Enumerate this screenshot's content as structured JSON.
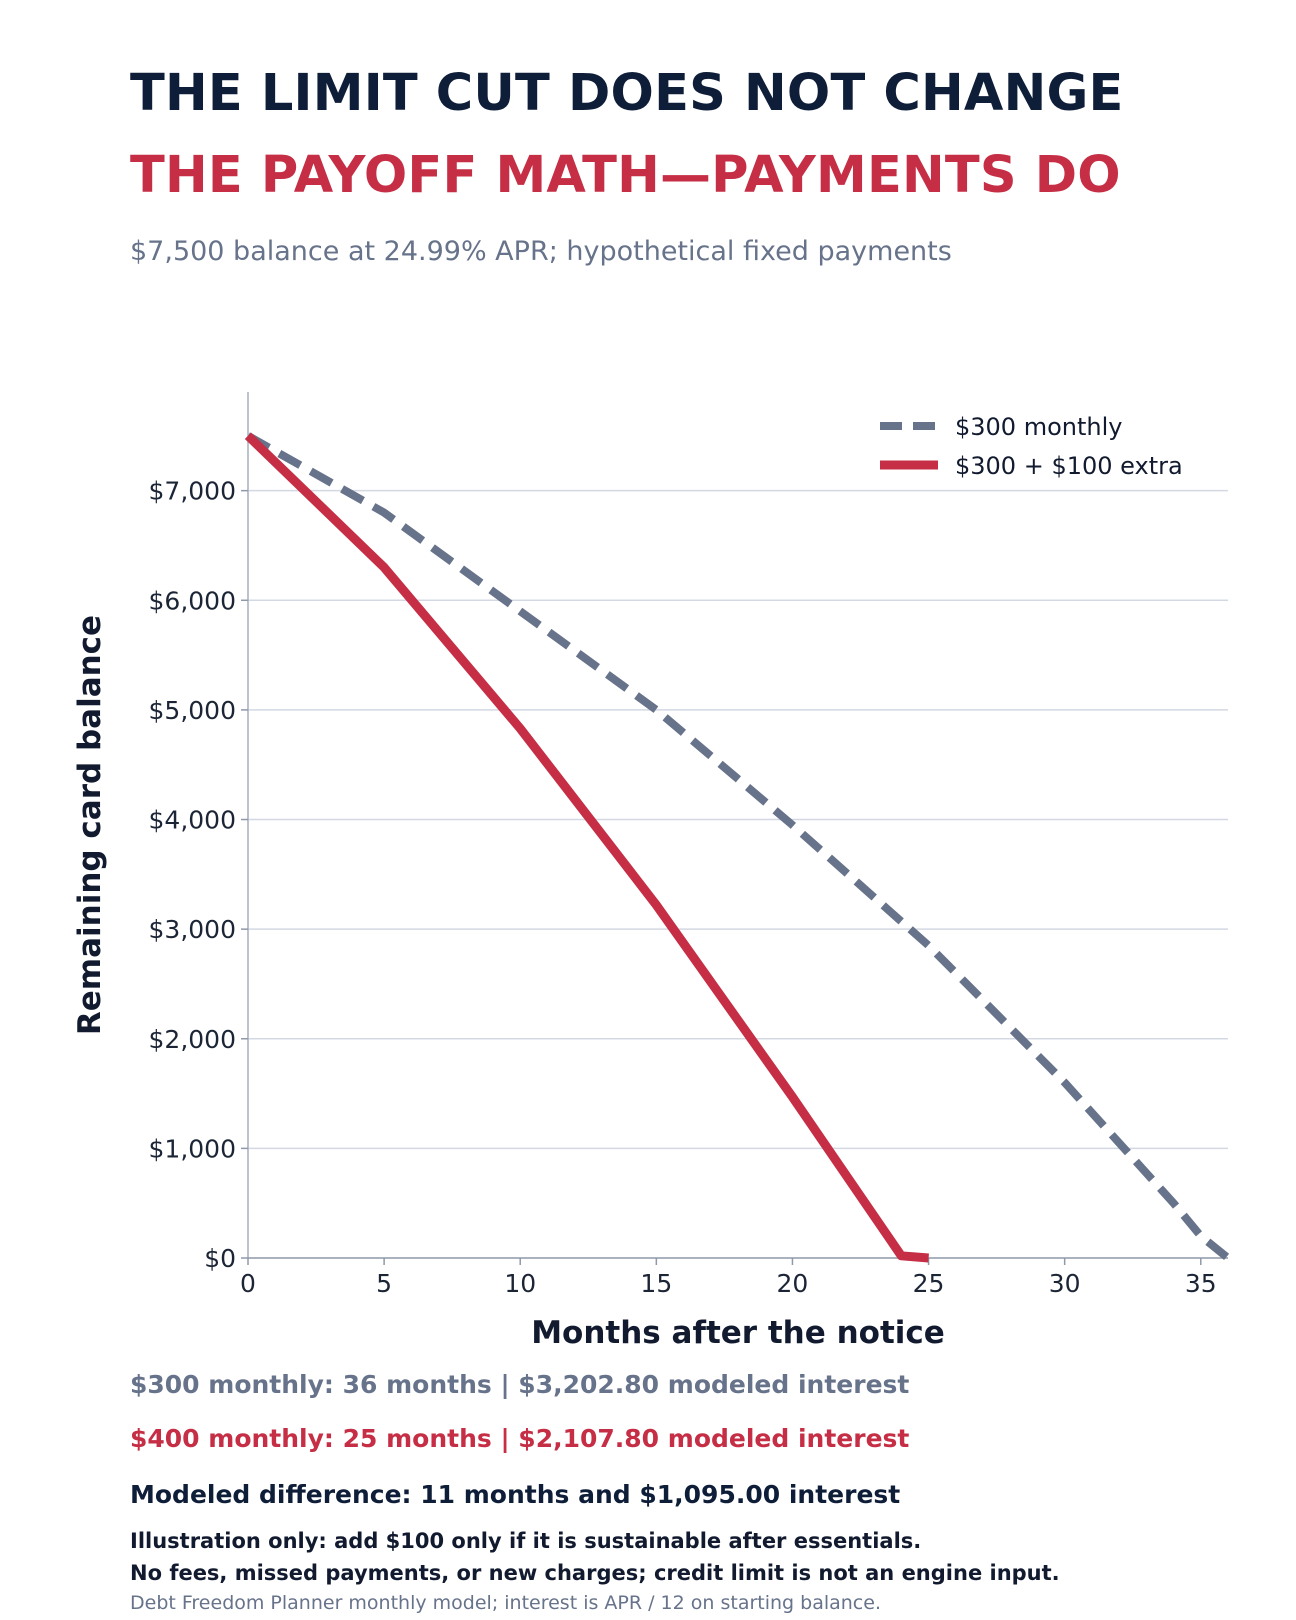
{
  "header": {
    "title_line1": "THE LIMIT CUT DOES NOT CHANGE",
    "title_line2": "THE PAYOFF MATH—PAYMENTS DO",
    "subtitle": "$7,500 balance at 24.99% APR; hypothetical fixed payments"
  },
  "colors": {
    "navy": "#0e1d38",
    "accent_red": "#c52e45",
    "slate": "#67738a",
    "grid": "#d3d8e2"
  },
  "chart_data": {
    "type": "line",
    "xlabel": "Months after the notice",
    "ylabel": "Remaining card balance",
    "xlim": [
      0,
      36
    ],
    "ylim": [
      0,
      7900
    ],
    "x_ticks": [
      0,
      5,
      10,
      15,
      20,
      25,
      30,
      35
    ],
    "x_tick_labels": [
      "0",
      "5",
      "10",
      "15",
      "20",
      "25",
      "30",
      "35"
    ],
    "y_ticks": [
      0,
      1000,
      2000,
      3000,
      4000,
      5000,
      6000,
      7000
    ],
    "y_tick_labels": [
      "$0",
      "$1,000",
      "$2,000",
      "$3,000",
      "$4,000",
      "$5,000",
      "$6,000",
      "$7,000"
    ],
    "grid": "horizontal",
    "legend_position": "top-right",
    "series": [
      {
        "name": "$300 monthly",
        "color": "#67738a",
        "style": "dashed",
        "x": [
          0,
          5,
          10,
          15,
          20,
          25,
          30,
          34,
          35,
          36
        ],
        "y": [
          7500,
          6800,
          5900,
          5000,
          3950,
          2850,
          1600,
          500,
          200,
          0
        ]
      },
      {
        "name": "$300 + $100 extra",
        "color": "#c52e45",
        "style": "solid",
        "x": [
          0,
          5,
          10,
          15,
          20,
          24,
          25
        ],
        "y": [
          7500,
          6300,
          4830,
          3220,
          1470,
          20,
          0
        ]
      }
    ]
  },
  "summary": {
    "line1": "$300 monthly: 36 months  |  $3,202.80 modeled interest",
    "line2": "$400 monthly: 25 months  |  $2,107.80 modeled interest",
    "line3": "Modeled difference: 11 months and $1,095.00 interest"
  },
  "notes": {
    "line1": "Illustration only: add $100 only if it is sustainable after essentials.",
    "line2": "No fees, missed payments, or new charges; credit limit is not an engine input.",
    "source": "Debt Freedom Planner monthly model; interest is APR / 12 on starting balance."
  }
}
